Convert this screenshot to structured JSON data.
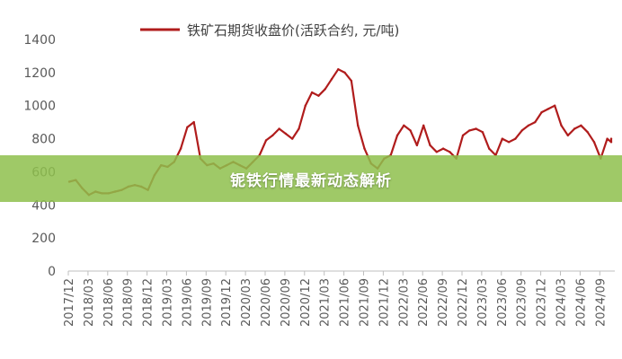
{
  "banner": {
    "text": "铌铁行情最新动态解析"
  },
  "colors": {
    "series": "#b01c1c",
    "banner": "#8ebf4c",
    "axis": "#bfbfbf"
  },
  "chart_data": {
    "type": "line",
    "title": "",
    "xlabel": "",
    "ylabel": "",
    "ylim": [
      0,
      1400
    ],
    "yticks": [
      0,
      200,
      400,
      600,
      800,
      1000,
      1200,
      1400
    ],
    "xticks": [
      "2017/12",
      "2018/03",
      "2018/06",
      "2018/09",
      "2018/12",
      "2019/03",
      "2019/06",
      "2019/09",
      "2019/12",
      "2020/03",
      "2020/06",
      "2020/09",
      "2020/12",
      "2021/03",
      "2021/06",
      "2021/09",
      "2021/12",
      "2022/03",
      "2022/06",
      "2022/09",
      "2022/12",
      "2023/03",
      "2023/06",
      "2023/09",
      "2023/12",
      "2024/03",
      "2024/06",
      "2024/09"
    ],
    "legend_position": "top",
    "grid": false,
    "series": [
      {
        "name": "铁矿石期货收盘价(活跃合约,  元/吨)",
        "x": [
          "2017/12",
          "2018/01",
          "2018/02",
          "2018/03",
          "2018/04",
          "2018/05",
          "2018/06",
          "2018/07",
          "2018/08",
          "2018/09",
          "2018/10",
          "2018/11",
          "2018/12",
          "2019/01",
          "2019/02",
          "2019/03",
          "2019/04",
          "2019/05",
          "2019/06",
          "2019/07",
          "2019/08",
          "2019/09",
          "2019/10",
          "2019/11",
          "2019/12",
          "2020/01",
          "2020/02",
          "2020/03",
          "2020/04",
          "2020/05",
          "2020/06",
          "2020/07",
          "2020/08",
          "2020/09",
          "2020/10",
          "2020/11",
          "2020/12",
          "2021/01",
          "2021/02",
          "2021/03",
          "2021/04",
          "2021/05",
          "2021/06",
          "2021/07",
          "2021/08",
          "2021/09",
          "2021/10",
          "2021/11",
          "2021/12",
          "2022/01",
          "2022/02",
          "2022/03",
          "2022/04",
          "2022/05",
          "2022/06",
          "2022/07",
          "2022/08",
          "2022/09",
          "2022/10",
          "2022/11",
          "2022/12",
          "2023/01",
          "2023/02",
          "2023/03",
          "2023/04",
          "2023/05",
          "2023/06",
          "2023/07",
          "2023/08",
          "2023/09",
          "2023/10",
          "2023/11",
          "2023/12",
          "2024/01",
          "2024/02",
          "2024/03",
          "2024/04",
          "2024/05",
          "2024/06",
          "2024/07",
          "2024/08",
          "2024/09",
          "2024/10",
          "2024/11",
          "2024/12"
        ],
        "values": [
          540,
          550,
          500,
          460,
          480,
          470,
          470,
          480,
          490,
          510,
          520,
          510,
          490,
          580,
          640,
          630,
          660,
          740,
          870,
          900,
          680,
          640,
          650,
          620,
          640,
          660,
          640,
          620,
          660,
          700,
          790,
          820,
          860,
          830,
          800,
          860,
          1000,
          1080,
          1060,
          1100,
          1160,
          1220,
          1200,
          1150,
          880,
          740,
          650,
          620,
          680,
          700,
          820,
          880,
          850,
          760,
          880,
          760,
          720,
          740,
          720,
          680,
          820,
          850,
          860,
          840,
          740,
          700,
          800,
          780,
          800,
          850,
          880,
          900,
          960,
          980,
          1000,
          880,
          820,
          860,
          880,
          840,
          780,
          680,
          800,
          780,
          800
        ]
      }
    ]
  }
}
